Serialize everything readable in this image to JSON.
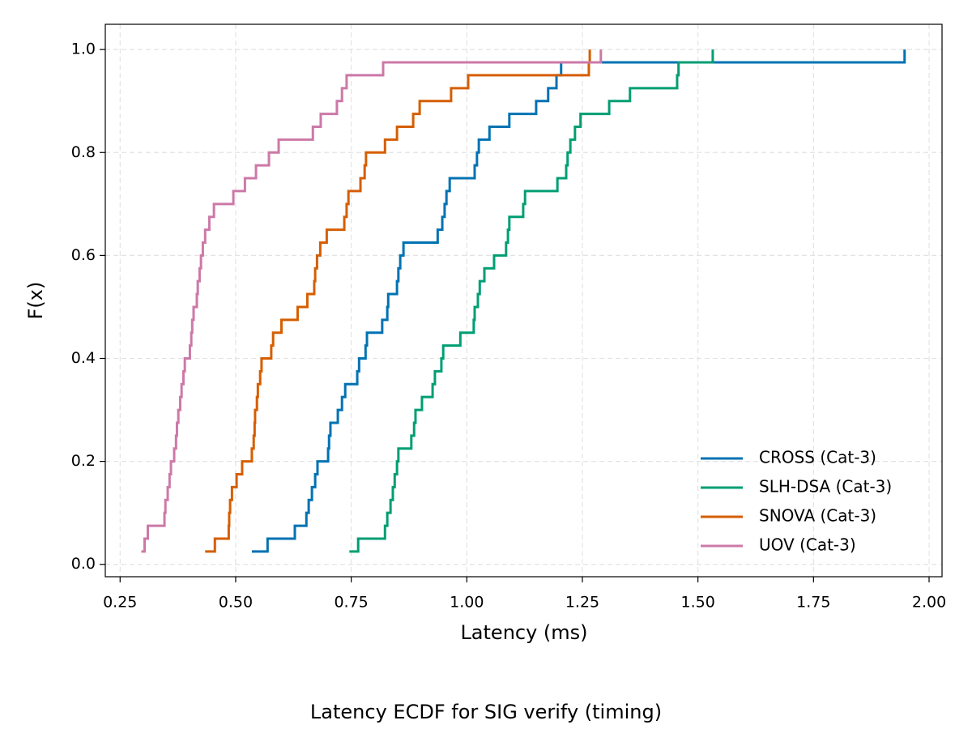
{
  "chart_data": {
    "type": "ecdf",
    "title": "Latency ECDF for SIG verify (timing)",
    "x_label": "Latency (ms)",
    "y_label": "F(x)",
    "xlim": [
      0.218,
      2.028
    ],
    "ylim": [
      -0.024,
      1.049
    ],
    "xticks": [
      {
        "value": 0.25,
        "label": "0.25"
      },
      {
        "value": 0.5,
        "label": "0.50"
      },
      {
        "value": 0.75,
        "label": "0.75"
      },
      {
        "value": 1.0,
        "label": "1.00"
      },
      {
        "value": 1.25,
        "label": "1.25"
      },
      {
        "value": 1.5,
        "label": "1.50"
      },
      {
        "value": 1.75,
        "label": "1.75"
      },
      {
        "value": 2.0,
        "label": "2.00"
      }
    ],
    "yticks": [
      {
        "value": 0,
        "label": "0.0"
      },
      0.2,
      0.4,
      0.6,
      0.8,
      {
        "value": 1,
        "label": "1.0"
      }
    ],
    "grid": true,
    "legend": "lower right",
    "series": [
      {
        "name": "CROSS (Cat-3)",
        "color": "#0072b2",
        "x": [
          0.535,
          0.569,
          0.628,
          0.653,
          0.658,
          0.665,
          0.672,
          0.677,
          0.7,
          0.702,
          0.705,
          0.721,
          0.73,
          0.737,
          0.763,
          0.767,
          0.781,
          0.784,
          0.817,
          0.828,
          0.83,
          0.849,
          0.852,
          0.856,
          0.863,
          0.937,
          0.947,
          0.952,
          0.956,
          0.963,
          1.017,
          1.022,
          1.026,
          1.049,
          1.092,
          1.15,
          1.176,
          1.194,
          1.204,
          1.947
        ],
        "values": [
          0.025,
          0.05,
          0.075,
          0.1,
          0.125,
          0.15,
          0.175,
          0.2,
          0.225,
          0.25,
          0.275,
          0.3,
          0.325,
          0.35,
          0.375,
          0.4,
          0.425,
          0.45,
          0.475,
          0.5,
          0.525,
          0.55,
          0.575,
          0.6,
          0.625,
          0.65,
          0.675,
          0.7,
          0.725,
          0.75,
          0.775,
          0.8,
          0.825,
          0.85,
          0.875,
          0.9,
          0.925,
          0.95,
          0.975,
          1.0
        ]
      },
      {
        "name": "SLH-DSA (Cat-3)",
        "color": "#009e73",
        "x": [
          0.746,
          0.765,
          0.823,
          0.828,
          0.835,
          0.84,
          0.844,
          0.849,
          0.852,
          0.88,
          0.886,
          0.889,
          0.903,
          0.926,
          0.931,
          0.945,
          0.949,
          0.986,
          1.015,
          1.017,
          1.024,
          1.028,
          1.038,
          1.059,
          1.085,
          1.089,
          1.092,
          1.122,
          1.126,
          1.196,
          1.215,
          1.218,
          1.224,
          1.234,
          1.246,
          1.308,
          1.353,
          1.455,
          1.458,
          1.532
        ],
        "values": [
          0.025,
          0.05,
          0.075,
          0.1,
          0.125,
          0.15,
          0.175,
          0.2,
          0.225,
          0.25,
          0.275,
          0.3,
          0.325,
          0.35,
          0.375,
          0.4,
          0.425,
          0.45,
          0.475,
          0.5,
          0.525,
          0.55,
          0.575,
          0.6,
          0.625,
          0.65,
          0.675,
          0.7,
          0.725,
          0.75,
          0.775,
          0.8,
          0.825,
          0.85,
          0.875,
          0.9,
          0.925,
          0.95,
          0.975,
          1.0
        ]
      },
      {
        "name": "SNOVA (Cat-3)",
        "color": "#d55e00",
        "x": [
          0.434,
          0.455,
          0.485,
          0.486,
          0.488,
          0.492,
          0.502,
          0.514,
          0.535,
          0.539,
          0.541,
          0.542,
          0.546,
          0.548,
          0.553,
          0.556,
          0.577,
          0.581,
          0.599,
          0.634,
          0.655,
          0.67,
          0.672,
          0.676,
          0.683,
          0.697,
          0.735,
          0.74,
          0.744,
          0.77,
          0.779,
          0.782,
          0.823,
          0.849,
          0.884,
          0.898,
          0.966,
          1.003,
          1.264,
          1.266
        ],
        "values": [
          0.025,
          0.05,
          0.075,
          0.1,
          0.125,
          0.15,
          0.175,
          0.2,
          0.225,
          0.25,
          0.275,
          0.3,
          0.325,
          0.35,
          0.375,
          0.4,
          0.425,
          0.45,
          0.475,
          0.5,
          0.525,
          0.55,
          0.575,
          0.6,
          0.625,
          0.65,
          0.675,
          0.7,
          0.725,
          0.75,
          0.775,
          0.8,
          0.825,
          0.85,
          0.875,
          0.9,
          0.925,
          0.95,
          0.975,
          1.0
        ]
      },
      {
        "name": "UOV (Cat-3)",
        "color": "#cc79a7",
        "x": [
          0.296,
          0.303,
          0.31,
          0.346,
          0.348,
          0.353,
          0.357,
          0.36,
          0.367,
          0.371,
          0.373,
          0.376,
          0.38,
          0.383,
          0.387,
          0.39,
          0.401,
          0.404,
          0.406,
          0.409,
          0.416,
          0.418,
          0.422,
          0.425,
          0.429,
          0.434,
          0.443,
          0.453,
          0.495,
          0.52,
          0.544,
          0.572,
          0.593,
          0.667,
          0.684,
          0.719,
          0.73,
          0.74,
          0.819,
          1.29
        ],
        "values": [
          0.025,
          0.05,
          0.075,
          0.1,
          0.125,
          0.15,
          0.175,
          0.2,
          0.225,
          0.25,
          0.275,
          0.3,
          0.325,
          0.35,
          0.375,
          0.4,
          0.425,
          0.45,
          0.475,
          0.5,
          0.525,
          0.55,
          0.575,
          0.6,
          0.625,
          0.65,
          0.675,
          0.7,
          0.725,
          0.75,
          0.775,
          0.8,
          0.825,
          0.85,
          0.875,
          0.9,
          0.925,
          0.95,
          0.975,
          1.0
        ]
      }
    ]
  }
}
